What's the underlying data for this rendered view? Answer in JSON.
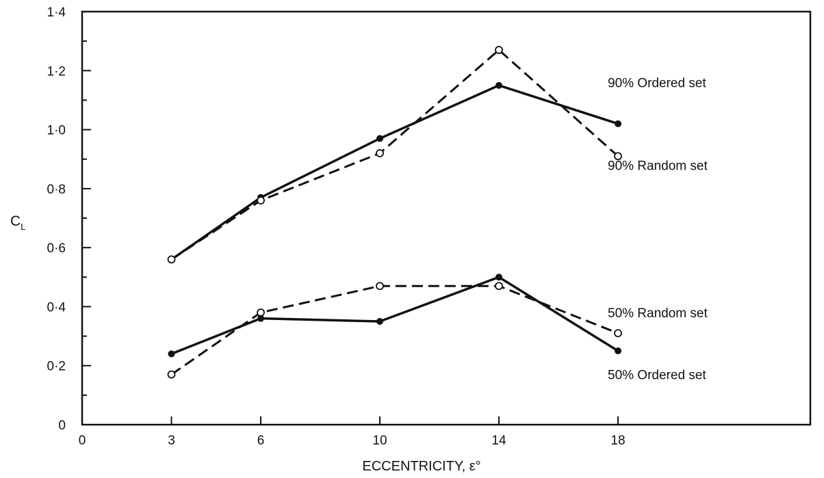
{
  "chart_data": {
    "type": "line",
    "xlabel": "ECCENTRICITY, ε°",
    "ylabel": "C",
    "ylabel_subscript": "L",
    "xlim": [
      0,
      25
    ],
    "ylim": [
      0,
      1.4
    ],
    "x_ticks": [
      {
        "value": 0,
        "label": "0"
      },
      {
        "value": 3,
        "label": "3"
      },
      {
        "value": 6,
        "label": "6"
      },
      {
        "value": 10,
        "label": "10"
      },
      {
        "value": 14,
        "label": "14"
      },
      {
        "value": 18,
        "label": "18"
      }
    ],
    "y_ticks": [
      {
        "value": 0,
        "label": "0"
      },
      {
        "value": 0.2,
        "label": "0·2"
      },
      {
        "value": 0.4,
        "label": "0·4"
      },
      {
        "value": 0.6,
        "label": "0·6"
      },
      {
        "value": 0.8,
        "label": "0·8"
      },
      {
        "value": 1.0,
        "label": "1·0"
      },
      {
        "value": 1.2,
        "label": "1·2"
      },
      {
        "value": 1.4,
        "label": "1·4"
      }
    ],
    "y_minor_ticks": [
      0.1,
      0.3,
      0.5,
      0.7,
      0.9,
      1.1,
      1.3
    ],
    "grid": false,
    "legend": "labels next to line ends",
    "series": [
      {
        "name": "90% Ordered set",
        "style": "solid",
        "marker": "filled",
        "x": [
          3,
          6,
          10,
          14,
          18
        ],
        "y": [
          0.56,
          0.77,
          0.97,
          1.15,
          1.02
        ],
        "label_anchor_value": 1.16
      },
      {
        "name": "90% Random set",
        "style": "dashed",
        "marker": "open",
        "x": [
          3,
          6,
          10,
          14,
          18
        ],
        "y": [
          0.56,
          0.76,
          0.92,
          1.27,
          0.91
        ],
        "label_anchor_value": 0.88
      },
      {
        "name": "50% Random set",
        "style": "dashed",
        "marker": "open",
        "x": [
          3,
          6,
          10,
          14,
          18
        ],
        "y": [
          0.17,
          0.38,
          0.47,
          0.47,
          0.31
        ],
        "label_anchor_value": 0.38
      },
      {
        "name": "50% Ordered set",
        "style": "solid",
        "marker": "filled",
        "x": [
          3,
          6,
          10,
          14,
          18
        ],
        "y": [
          0.24,
          0.36,
          0.35,
          0.5,
          0.25
        ],
        "label_anchor_value": 0.17
      }
    ]
  }
}
